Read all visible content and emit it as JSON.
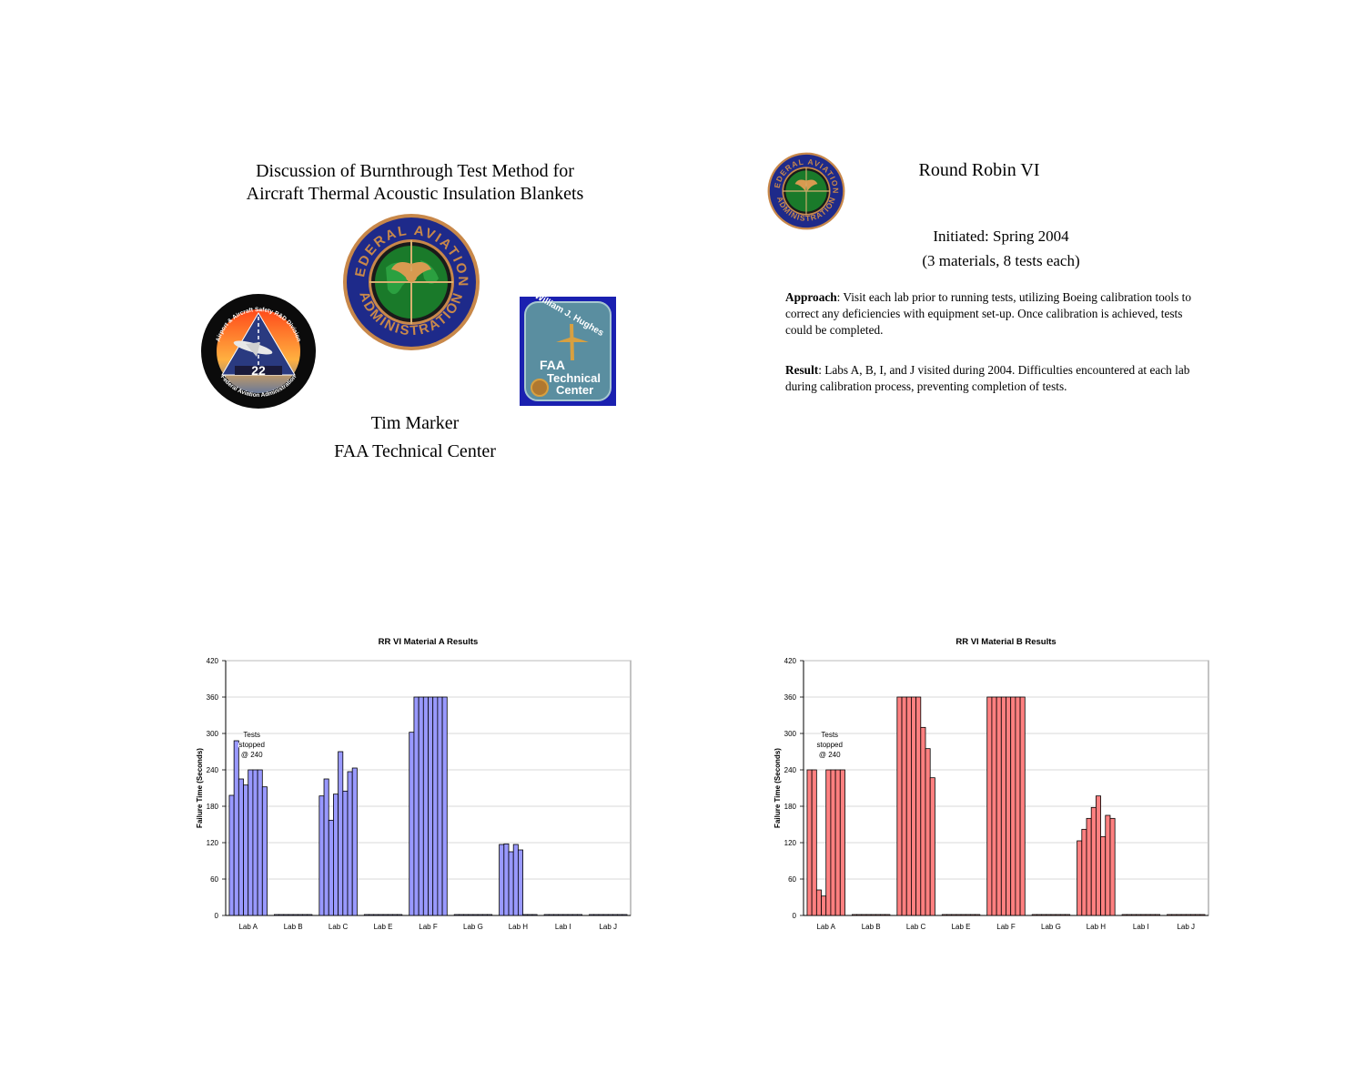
{
  "slide1": {
    "title_line1": "Discussion of Burnthrough Test Method for",
    "title_line2": "Aircraft Thermal Acoustic Insulation Blankets",
    "author": "Tim Marker",
    "affiliation": "FAA Technical Center",
    "logos": {
      "faa_seal": {
        "top": "FEDERAL AVIATION",
        "bottom": "ADMINISTRATION"
      },
      "safety_division": {
        "top": "Airport & Aircraft Safety R&D Division",
        "bottom": "Federal Aviation Administration",
        "runway": "22"
      },
      "tech_center": {
        "line1": "William J. Hughes",
        "line2": "FAA",
        "line3": "Technical",
        "line4": "Center"
      }
    }
  },
  "slide2": {
    "title": "Round Robin VI",
    "initiated": "Initiated: Spring 2004",
    "materials": "(3 materials, 8 tests each)",
    "approach_label": "Approach",
    "approach_text": ": Visit each lab prior to running tests, utilizing Boeing calibration tools to correct any deficiencies with equipment set-up.  Once calibration is achieved, tests could be completed.",
    "result_label": "Result",
    "result_text": ": Labs A, B, I, and J visited during 2004.  Difficulties encountered at each lab during calibration process, preventing completion of tests."
  },
  "chart_data": [
    {
      "type": "bar",
      "title": "RR VI Material A Results",
      "ylabel": "Failure Time (Seconds)",
      "ylim": [
        0,
        420
      ],
      "yticks": [
        0,
        60,
        120,
        180,
        240,
        300,
        360,
        420
      ],
      "categories": [
        "Lab A",
        "Lab B",
        "Lab C",
        "Lab E",
        "Lab F",
        "Lab G",
        "Lab H",
        "Lab I",
        "Lab J"
      ],
      "values": [
        [
          198,
          288,
          225,
          215,
          240,
          240,
          240,
          212
        ],
        [
          0,
          0,
          0,
          0,
          0,
          0,
          0,
          0
        ],
        [
          197,
          225,
          157,
          200,
          270,
          205,
          237,
          243
        ],
        [
          0,
          0,
          0,
          0,
          0,
          0,
          0,
          0
        ],
        [
          302,
          360,
          360,
          360,
          360,
          360,
          360,
          360
        ],
        [
          0,
          0,
          0,
          0,
          0,
          0,
          0,
          0
        ],
        [
          117,
          118,
          105,
          117,
          108,
          0,
          0,
          0
        ],
        [
          0,
          0,
          0,
          0,
          0,
          0,
          0,
          0
        ],
        [
          0,
          0,
          0,
          0,
          0,
          0,
          0,
          0
        ]
      ],
      "annotation": [
        "Tests",
        "stopped",
        "@ 240"
      ],
      "grid": true,
      "bar_fill": "#9999ff"
    },
    {
      "type": "bar",
      "title": "RR VI Material B Results",
      "ylabel": "Failure Time (Seconds)",
      "ylim": [
        0,
        420
      ],
      "yticks": [
        0,
        60,
        120,
        180,
        240,
        300,
        360,
        420
      ],
      "categories": [
        "Lab A",
        "Lab B",
        "Lab C",
        "Lab E",
        "Lab F",
        "Lab G",
        "Lab H",
        "Lab I",
        "Lab J"
      ],
      "values": [
        [
          240,
          240,
          42,
          32,
          240,
          240,
          240,
          240
        ],
        [
          0,
          0,
          0,
          0,
          0,
          0,
          0,
          0
        ],
        [
          360,
          360,
          360,
          360,
          360,
          310,
          275,
          227
        ],
        [
          0,
          0,
          0,
          0,
          0,
          0,
          0,
          0
        ],
        [
          360,
          360,
          360,
          360,
          360,
          360,
          360,
          360
        ],
        [
          0,
          0,
          0,
          0,
          0,
          0,
          0,
          0
        ],
        [
          123,
          142,
          160,
          178,
          197,
          130,
          165,
          160
        ],
        [
          0,
          0,
          0,
          0,
          0,
          0,
          0,
          0
        ],
        [
          0,
          0,
          0,
          0,
          0,
          0,
          0,
          0
        ]
      ],
      "annotation": [
        "Tests",
        "stopped",
        "@ 240"
      ],
      "grid": true,
      "bar_fill": "#ff8080"
    }
  ]
}
